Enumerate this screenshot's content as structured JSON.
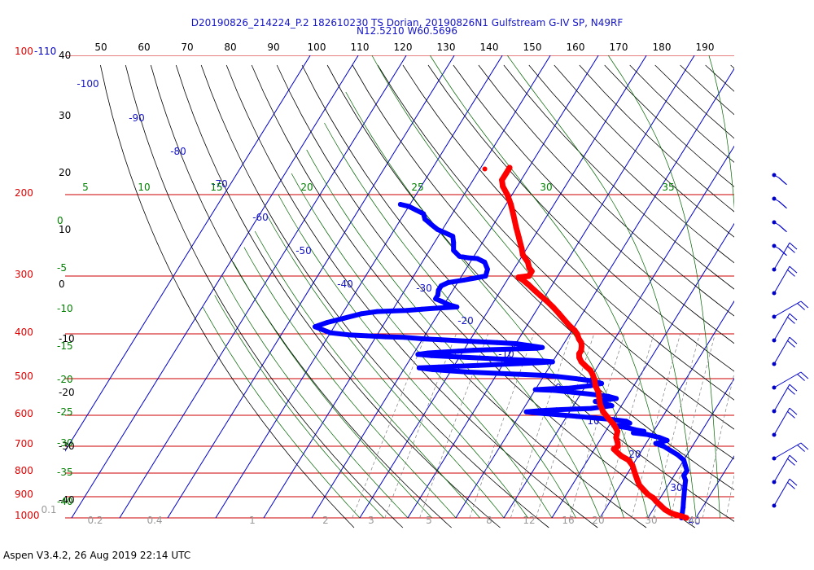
{
  "header": {
    "line1": "D20190826_214224_P.2 182610230 TS Dorian, 20190826N1 Gulfstream G-IV SP, N49RF",
    "line2": "N12.5210 W60.5696"
  },
  "footer": {
    "text": "Aspen V3.4.2, 26 Aug 2019  22:14 UTC"
  },
  "colors": {
    "temperature": "#ff0000",
    "dewpoint": "#0000ff",
    "isobar": "#cc0000",
    "isotherm": "#0000cc",
    "dry_adiabat": "#000000",
    "moist_adiabat": "#006400",
    "mixing_ratio": "#808080",
    "label_green": "#008000"
  },
  "chart_data": {
    "type": "scatter",
    "diagram": "Skew-T log-P",
    "pressure_labels": [
      "100-110",
      "200",
      "300",
      "400",
      "500",
      "600",
      "700",
      "800",
      "900",
      "1000"
    ],
    "pressure_levels": [
      100,
      200,
      300,
      400,
      500,
      600,
      700,
      800,
      900,
      1000
    ],
    "altitude_labels": [
      "40",
      "30",
      "20",
      "10",
      "0",
      "-10",
      "-20",
      "-30",
      "-40"
    ],
    "top_scale_labels": [
      "50",
      "60",
      "70",
      "80",
      "90",
      "100",
      "110",
      "120",
      "130",
      "140",
      "150",
      "160",
      "170",
      "180",
      "190"
    ],
    "isotherm_labels": [
      "-100",
      "-90",
      "-80",
      "-70",
      "-60",
      "-50",
      "-40",
      "-30",
      "-20",
      "-10",
      "0",
      "10",
      "20",
      "30",
      "40"
    ],
    "moist_adiabat_labels": [
      "5",
      "10",
      "15",
      "20",
      "25",
      "30",
      "35"
    ],
    "left_green_labels": [
      "0",
      "-5",
      "-10",
      "-15",
      "-20",
      "-25",
      "-30",
      "-35",
      "-40"
    ],
    "mixing_ratio_labels": [
      "0.1",
      "0.2",
      "0.4",
      "1",
      "2",
      "3",
      "5",
      "8",
      "12",
      "16",
      "20",
      "30",
      "40"
    ],
    "series": [
      {
        "name": "Temperature",
        "unit_x": "C",
        "unit_y": "hPa",
        "points": [
          [
            -54,
            175
          ],
          [
            -54,
            180
          ],
          [
            -54,
            186
          ],
          [
            -53,
            192
          ],
          [
            -51,
            200
          ],
          [
            -49,
            210
          ],
          [
            -47,
            222
          ],
          [
            -45,
            235
          ],
          [
            -43,
            248
          ],
          [
            -41,
            262
          ],
          [
            -40,
            270
          ],
          [
            -38,
            280
          ],
          [
            -37,
            288
          ],
          [
            -36,
            293
          ],
          [
            -36,
            300
          ],
          [
            -38,
            302
          ],
          [
            -37,
            305
          ],
          [
            -35,
            313
          ],
          [
            -33,
            322
          ],
          [
            -31,
            331
          ],
          [
            -29,
            340
          ],
          [
            -27,
            350
          ],
          [
            -25,
            361
          ],
          [
            -23,
            373
          ],
          [
            -21,
            385
          ],
          [
            -19.5,
            393
          ],
          [
            -18.5,
            400
          ],
          [
            -17.5,
            410
          ],
          [
            -16.5,
            418
          ],
          [
            -16,
            425
          ],
          [
            -15.5,
            435
          ],
          [
            -15.5,
            442
          ],
          [
            -15,
            450
          ],
          [
            -14,
            460
          ],
          [
            -12.5,
            470
          ],
          [
            -11,
            480
          ],
          [
            -10,
            490
          ],
          [
            -9,
            502
          ],
          [
            -8,
            518
          ],
          [
            -6.5,
            535
          ],
          [
            -5.5,
            553
          ],
          [
            -4.5,
            570
          ],
          [
            -3,
            590
          ],
          [
            -1,
            610
          ],
          [
            1,
            630
          ],
          [
            2.5,
            650
          ],
          [
            3,
            670
          ],
          [
            4,
            688
          ],
          [
            4.5,
            700
          ],
          [
            4,
            710
          ],
          [
            5,
            720
          ],
          [
            6.5,
            735
          ],
          [
            8.5,
            750
          ],
          [
            10,
            770
          ],
          [
            11,
            790
          ],
          [
            12,
            810
          ],
          [
            13,
            830
          ],
          [
            14,
            850
          ],
          [
            15.5,
            870
          ],
          [
            17,
            890
          ],
          [
            18.5,
            905
          ],
          [
            19.5,
            920
          ],
          [
            21,
            940
          ],
          [
            22.5,
            960
          ],
          [
            24,
            975
          ],
          [
            25.5,
            985
          ],
          [
            27,
            993
          ],
          [
            28,
            1000
          ]
        ],
        "points_isolated": [
          [
            -59,
            176
          ]
        ]
      },
      {
        "name": "Dewpoint",
        "unit_x": "C",
        "unit_y": "hPa",
        "points": [
          [
            -72,
            210
          ],
          [
            -70,
            212
          ],
          [
            -68,
            216
          ],
          [
            -66,
            220
          ],
          [
            -65,
            226
          ],
          [
            -63,
            232
          ],
          [
            -61,
            238
          ],
          [
            -59,
            242
          ],
          [
            -57,
            246
          ],
          [
            -56,
            254
          ],
          [
            -55,
            264
          ],
          [
            -53,
            272
          ],
          [
            -51,
            274
          ],
          [
            -49,
            275
          ],
          [
            -47,
            280
          ],
          [
            -45.5,
            290
          ],
          [
            -45,
            300
          ],
          [
            -47,
            303
          ],
          [
            -49,
            306
          ],
          [
            -52,
            310
          ],
          [
            -53,
            315
          ],
          [
            -53,
            322
          ],
          [
            -52.5,
            330
          ],
          [
            -52.5,
            336
          ],
          [
            -51,
            340
          ],
          [
            -50,
            343
          ],
          [
            -49,
            346
          ],
          [
            -48,
            348
          ],
          [
            -47,
            350
          ],
          [
            -51,
            352
          ],
          [
            -54,
            354
          ],
          [
            -57,
            356
          ],
          [
            -60,
            357
          ],
          [
            -63,
            358
          ],
          [
            -66,
            362
          ],
          [
            -69,
            370
          ],
          [
            -72,
            378
          ],
          [
            -74,
            386
          ],
          [
            -72,
            392
          ],
          [
            -70,
            398
          ],
          [
            -66,
            402
          ],
          [
            -62,
            404
          ],
          [
            -58,
            406
          ],
          [
            -54,
            407
          ],
          [
            -50,
            410
          ],
          [
            -46,
            412
          ],
          [
            -42,
            414
          ],
          [
            -38,
            416
          ],
          [
            -34,
            418
          ],
          [
            -30,
            420
          ],
          [
            -27,
            424
          ],
          [
            -24,
            428
          ],
          [
            -25,
            430
          ],
          [
            -29,
            431
          ],
          [
            -32,
            432
          ],
          [
            -35,
            433
          ],
          [
            -38,
            434
          ],
          [
            -41,
            436
          ],
          [
            -44,
            438
          ],
          [
            -47,
            440
          ],
          [
            -49,
            443
          ],
          [
            -46,
            446
          ],
          [
            -42,
            448
          ],
          [
            -38,
            450
          ],
          [
            -34,
            452
          ],
          [
            -30,
            454
          ],
          [
            -26,
            456
          ],
          [
            -22,
            458
          ],
          [
            -20,
            460
          ],
          [
            -23,
            462
          ],
          [
            -27,
            464
          ],
          [
            -31,
            466
          ],
          [
            -35,
            468
          ],
          [
            -39,
            470
          ],
          [
            -43,
            472
          ],
          [
            -47,
            474
          ],
          [
            -44,
            478
          ],
          [
            -40,
            481
          ],
          [
            -36,
            484
          ],
          [
            -32,
            486
          ],
          [
            -28,
            488
          ],
          [
            -24,
            490
          ],
          [
            -20,
            492
          ],
          [
            -17,
            495
          ],
          [
            -13,
            500
          ],
          [
            -9,
            506
          ],
          [
            -7,
            512
          ],
          [
            -9,
            518
          ],
          [
            -13,
            524
          ],
          [
            -17,
            526
          ],
          [
            -20,
            528
          ],
          [
            -16,
            530
          ],
          [
            -12,
            535
          ],
          [
            -8,
            540
          ],
          [
            -4,
            546
          ],
          [
            -2,
            552
          ],
          [
            -4,
            556
          ],
          [
            -6,
            560
          ],
          [
            -4,
            566
          ],
          [
            -2,
            572
          ],
          [
            -4,
            576
          ],
          [
            -6,
            580
          ],
          [
            -10,
            582
          ],
          [
            -13,
            584
          ],
          [
            -16,
            586
          ],
          [
            -19,
            590
          ],
          [
            -16,
            594
          ],
          [
            -12,
            598
          ],
          [
            -8,
            603
          ],
          [
            -4,
            608
          ],
          [
            0,
            613
          ],
          [
            3,
            618
          ],
          [
            4,
            624
          ],
          [
            3,
            628
          ],
          [
            1,
            632
          ],
          [
            4,
            638
          ],
          [
            6,
            645
          ],
          [
            8,
            650
          ],
          [
            6,
            655
          ],
          [
            9,
            660
          ],
          [
            12,
            670
          ],
          [
            14,
            680
          ],
          [
            12,
            690
          ],
          [
            14,
            700
          ],
          [
            16,
            715
          ],
          [
            18,
            730
          ],
          [
            20,
            750
          ],
          [
            21,
            770
          ],
          [
            22,
            790
          ],
          [
            22,
            810
          ],
          [
            23,
            830
          ],
          [
            23.5,
            850
          ],
          [
            24,
            870
          ],
          [
            24.5,
            890
          ],
          [
            25,
            910
          ],
          [
            25.5,
            930
          ],
          [
            26,
            950
          ],
          [
            26.5,
            975
          ],
          [
            27,
            1000
          ]
        ]
      }
    ],
    "wind_barb_pressures": [
      200,
      230,
      260,
      300,
      350,
      400,
      470,
      550,
      620,
      700,
      760,
      830,
      900,
      960,
      1000
    ]
  }
}
